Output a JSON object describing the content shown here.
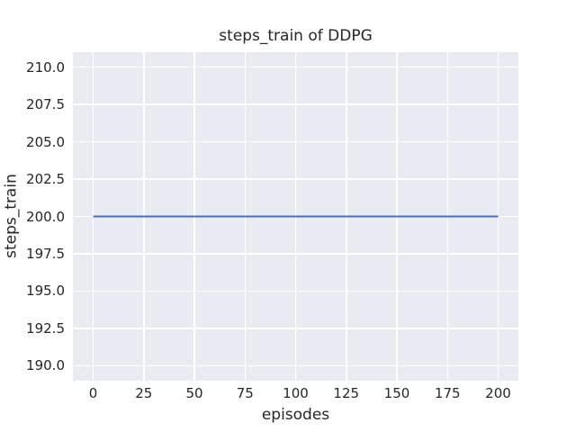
{
  "figure": {
    "background": "#ffffff"
  },
  "chart_data": {
    "type": "line",
    "title": "steps_train of DDPG",
    "xlabel": "episodes",
    "ylabel": "steps_train",
    "xlim": [
      -10,
      210
    ],
    "ylim": [
      189,
      211
    ],
    "xticks": {
      "values": [
        0,
        25,
        50,
        75,
        100,
        125,
        150,
        175,
        200
      ],
      "labels": [
        "0",
        "25",
        "50",
        "75",
        "100",
        "125",
        "150",
        "175",
        "200"
      ]
    },
    "yticks": {
      "values": [
        190,
        192.5,
        195,
        197.5,
        200,
        202.5,
        205,
        207.5,
        210
      ],
      "labels": [
        "190.0",
        "192.5",
        "195.0",
        "197.5",
        "200.0",
        "202.5",
        "205.0",
        "207.5",
        "210.0"
      ]
    },
    "grid": true,
    "legend_position": "none",
    "plot_background": "#eaeaf2",
    "grid_color": "#ffffff",
    "text_color": "#262626",
    "series": [
      {
        "name": "steps_train",
        "color": "#4c72b0",
        "line_width": 2,
        "x": [
          0,
          200
        ],
        "y": [
          200,
          200
        ]
      }
    ]
  }
}
